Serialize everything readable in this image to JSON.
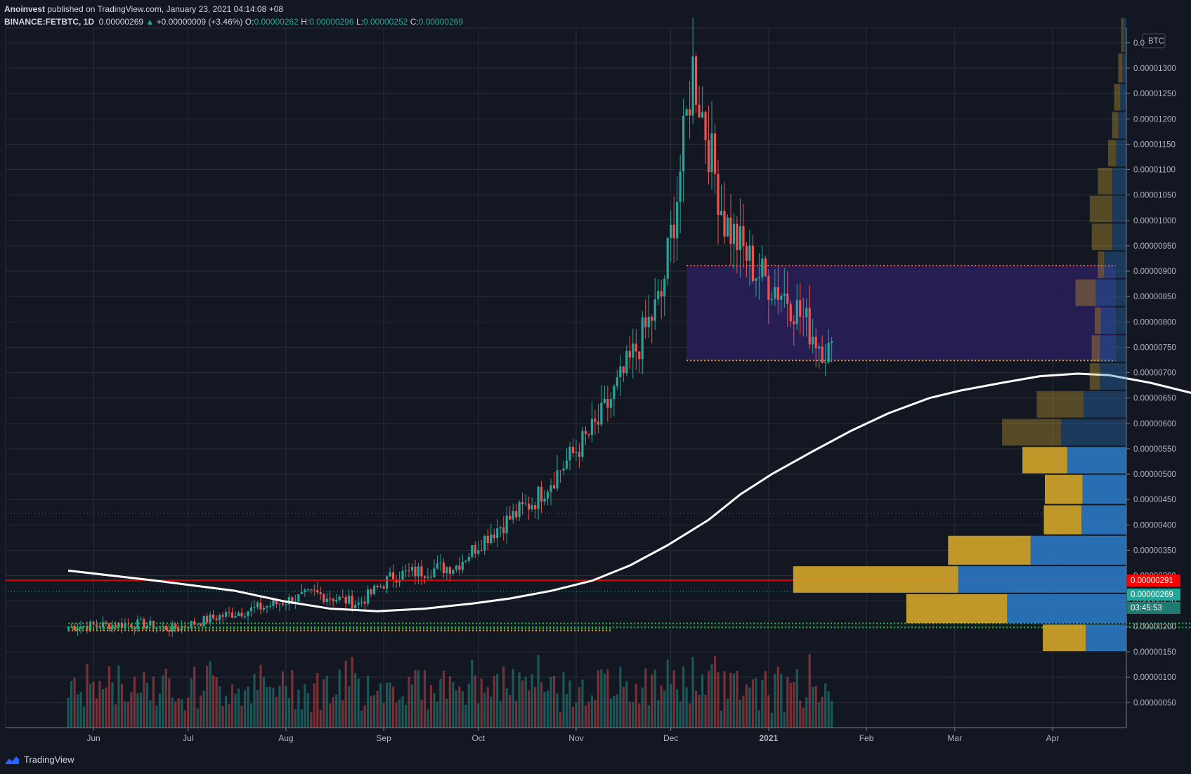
{
  "header": {
    "author": "Anoinvest",
    "published": "published on TradingView.com, January 23, 2021 04:14:08 +08",
    "symbol": "BINANCE:FETBTC, 1D",
    "last": "0.00000269",
    "change": "+0.00000009 (+3.46%)",
    "o_label": "O:",
    "o": "0.00000262",
    "h_label": "H:",
    "h": "0.00000296",
    "l_label": "L:",
    "l": "0.00000252",
    "c_label": "C:",
    "c": "0.00000269"
  },
  "footer": {
    "brand": "TradingView"
  },
  "colors": {
    "bg": "#131722",
    "grid": "#2a2e39",
    "up": "#26a69a",
    "down": "#ef5350",
    "ma": "#ffffff",
    "zone": "#2a1f5a",
    "resistance": "#ff0000",
    "support_green": "#1fbf3f",
    "support_orange": "#f0a030",
    "vp_up": "#d4a52a",
    "vp_down": "#2a78c2"
  },
  "chart_data": {
    "type": "candlestick",
    "currency": "BTC",
    "x_ticks": [
      "Jun",
      "Jul",
      "Aug",
      "Sep",
      "Oct",
      "Nov",
      "Dec",
      "2021",
      "Feb",
      "Mar",
      "Apr"
    ],
    "y_ticks": [
      "0.00000050",
      "0.00000100",
      "0.00000150",
      "0.00000200",
      "0.00000250",
      "0.00000300",
      "0.00000350",
      "0.00000400",
      "0.00000450",
      "0.00000500",
      "0.00000550",
      "0.00000600",
      "0.00000650",
      "0.00000700",
      "0.00000750",
      "0.00000800",
      "0.00000850",
      "0.00000900",
      "0.00000950",
      "0.00001000",
      "0.00001050",
      "0.00001100",
      "0.00001150",
      "0.00001200",
      "0.00001250",
      "0.00001300",
      "0.0"
    ],
    "y_units_e8": true,
    "ylim": [
      0,
      1400
    ],
    "price_labels": {
      "resistance": "0.00000291",
      "last": "0.00000269",
      "countdown": "03:45:53"
    },
    "moving_average": [
      [
        -8,
        310
      ],
      [
        20,
        290
      ],
      [
        45,
        270
      ],
      [
        60,
        250
      ],
      [
        75,
        235
      ],
      [
        90,
        230
      ],
      [
        105,
        235
      ],
      [
        120,
        245
      ],
      [
        132,
        255
      ],
      [
        145,
        270
      ],
      [
        158,
        290
      ],
      [
        170,
        320
      ],
      [
        182,
        360
      ],
      [
        195,
        410
      ],
      [
        205,
        460
      ],
      [
        215,
        500
      ],
      [
        228,
        545
      ],
      [
        240,
        585
      ],
      [
        252,
        620
      ],
      [
        265,
        650
      ],
      [
        275,
        665
      ],
      [
        288,
        680
      ],
      [
        300,
        693
      ],
      [
        312,
        698
      ],
      [
        322,
        695
      ],
      [
        335,
        680
      ],
      [
        348,
        660
      ],
      [
        358,
        630
      ],
      [
        370,
        590
      ],
      [
        380,
        545
      ],
      [
        392,
        495
      ],
      [
        405,
        445
      ],
      [
        418,
        400
      ],
      [
        430,
        365
      ],
      [
        442,
        335
      ],
      [
        455,
        310
      ],
      [
        467,
        290
      ],
      [
        478,
        278
      ]
    ],
    "zones": [
      {
        "start": 188,
        "end": 324,
        "top": 911,
        "bottom": 724
      },
      {
        "start": 391,
        "end": 442,
        "top": 358,
        "bottom": 308
      }
    ],
    "support_lines": [
      {
        "start": -8,
        "end": 164,
        "value": 192,
        "color": "support_orange"
      },
      {
        "start": -8,
        "end": 164,
        "value": 196,
        "color": "support_green"
      },
      {
        "start": -8,
        "end": 474,
        "value": 206,
        "color": "support_green"
      },
      {
        "start": -8,
        "end": 474,
        "value": 198,
        "color": "support_green"
      },
      {
        "start": 465,
        "end": 474,
        "value": 186,
        "color": "support_orange"
      },
      {
        "start": 465,
        "end": 474,
        "value": 172,
        "color": "support_orange"
      }
    ],
    "resistance_level": 291,
    "volume_profile": [
      {
        "low": 150,
        "high": 205,
        "up": 42,
        "down": 40
      },
      {
        "low": 205,
        "high": 265,
        "up": 99,
        "down": 117
      },
      {
        "low": 265,
        "high": 320,
        "up": 162,
        "down": 165
      },
      {
        "low": 320,
        "high": 380,
        "up": 81,
        "down": 94
      },
      {
        "low": 380,
        "high": 440,
        "up": 37,
        "down": 44
      },
      {
        "low": 440,
        "high": 500,
        "up": 37,
        "down": 43
      },
      {
        "low": 500,
        "high": 555,
        "up": 44,
        "down": 58
      },
      {
        "low": 555,
        "high": 610,
        "up": 58,
        "down": 64
      },
      {
        "low": 610,
        "high": 665,
        "up": 46,
        "down": 42
      },
      {
        "low": 665,
        "high": 720,
        "up": 10,
        "down": 26
      },
      {
        "low": 720,
        "high": 775,
        "up": 8,
        "down": 26
      },
      {
        "low": 775,
        "high": 830,
        "up": 6,
        "down": 25
      },
      {
        "low": 830,
        "high": 885,
        "up": 20,
        "down": 30
      },
      {
        "low": 885,
        "high": 940,
        "up": 6,
        "down": 22
      },
      {
        "low": 940,
        "high": 995,
        "up": 20,
        "down": 14
      },
      {
        "low": 995,
        "high": 1050,
        "up": 22,
        "down": 14
      },
      {
        "low": 1050,
        "high": 1105,
        "up": 14,
        "down": 14
      },
      {
        "low": 1105,
        "high": 1160,
        "up": 8,
        "down": 10
      },
      {
        "low": 1160,
        "high": 1215,
        "up": 6,
        "down": 8
      },
      {
        "low": 1215,
        "high": 1270,
        "up": 6,
        "down": 6
      },
      {
        "low": 1270,
        "high": 1330,
        "up": 4,
        "down": 4
      },
      {
        "low": 1330,
        "high": 1400,
        "up": 2,
        "down": 3
      }
    ],
    "anchors": [
      [
        -8,
        200
      ],
      [
        15,
        205
      ],
      [
        25,
        195
      ],
      [
        40,
        220
      ],
      [
        55,
        240
      ],
      [
        70,
        265
      ],
      [
        84,
        245
      ],
      [
        95,
        300
      ],
      [
        115,
        320
      ],
      [
        125,
        380
      ],
      [
        140,
        450
      ],
      [
        160,
        600
      ],
      [
        170,
        720
      ],
      [
        180,
        850
      ],
      [
        185,
        1050
      ],
      [
        190,
        1300
      ],
      [
        200,
        1000
      ],
      [
        210,
        900
      ],
      [
        220,
        850
      ],
      [
        230,
        760
      ],
      [
        240,
        700
      ],
      [
        250,
        620
      ],
      [
        258,
        500
      ],
      [
        270,
        570
      ],
      [
        275,
        640
      ],
      [
        280,
        520
      ],
      [
        290,
        450
      ],
      [
        300,
        450
      ],
      [
        315,
        420
      ],
      [
        325,
        370
      ],
      [
        335,
        300
      ],
      [
        350,
        290
      ],
      [
        365,
        310
      ],
      [
        385,
        290
      ],
      [
        392,
        330
      ],
      [
        400,
        280
      ],
      [
        410,
        290
      ],
      [
        420,
        280
      ],
      [
        430,
        270
      ],
      [
        440,
        240
      ],
      [
        450,
        200
      ],
      [
        460,
        160
      ],
      [
        466,
        180
      ],
      [
        470,
        200
      ],
      [
        478,
        265
      ],
      [
        480,
        269
      ]
    ]
  }
}
